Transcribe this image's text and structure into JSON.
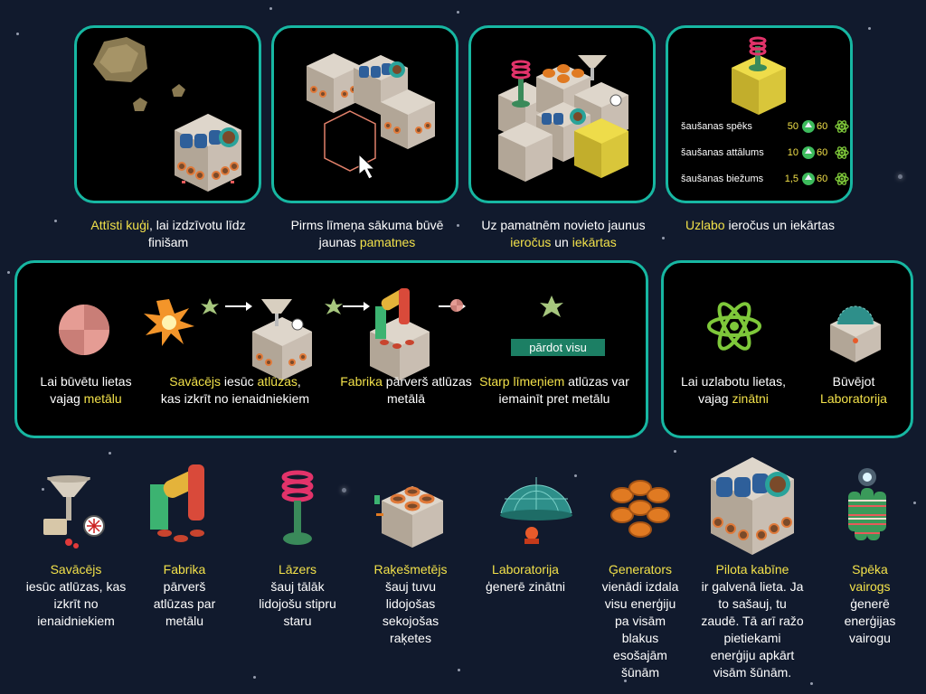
{
  "top_captions": [
    {
      "pre": "",
      "hl": "Attīsti kuģi",
      "post": ", lai izdzīvotu līdz finišam"
    },
    {
      "pre": "Pirms līmeņa sākuma būvē jaunas ",
      "hl": "pamatnes",
      "post": ""
    },
    {
      "pre": "Uz pamatnēm novieto jaunus ",
      "hl": "ieročus",
      "mid": " un ",
      "hl2": "iekārtas",
      "post": ""
    },
    {
      "pre": "",
      "hl": "Uzlabo",
      "post": " ieročus un iekārtas"
    }
  ],
  "stats": [
    {
      "label": "šaušanas spēks",
      "value": "50",
      "upgrade": "60"
    },
    {
      "label": "šaušanas attālums",
      "value": "10",
      "upgrade": "60"
    },
    {
      "label": "šaušanas biežums",
      "value": "1,5",
      "upgrade": "60"
    }
  ],
  "metal_panel": {
    "metal_caption": {
      "pre": "Lai būvētu lietas vajag ",
      "hl": "metālu",
      "post": ""
    },
    "collector_caption": {
      "hl": "Savācējs",
      "mid": " iesūc ",
      "hl2": "atlūzas",
      "post": ", kas izkrīt no ienaidniekiem"
    },
    "factory_caption": {
      "hl": "Fabrika",
      "post": " pārverš atlūzas metālā"
    },
    "sell_caption": {
      "hl": "Starp līmeņiem",
      "post": " atlūzas var iemainīt pret metālu"
    },
    "sell_button": "pārdot visu"
  },
  "science_panel": {
    "science_caption": {
      "pre": "Lai uzlabotu lietas, vajag ",
      "hl": "zinātni",
      "post": ""
    },
    "lab_caption": {
      "pre": "Būvējot ",
      "hl": "Laboratorija",
      "post": ""
    }
  },
  "items": [
    {
      "name": "Savācējs",
      "desc": "iesūc atlūzas, kas izkrīt no ienaidniekiem"
    },
    {
      "name": "Fabrika",
      "desc": "pārverš atlūzas par metālu"
    },
    {
      "name": "Lāzers",
      "desc": "šauj tālāk lidojošu stipru staru"
    },
    {
      "name": "Raķešmetējs",
      "desc": "šauj tuvu lidojošas sekojošas raķetes"
    },
    {
      "name": "Laboratorija",
      "desc": "ģenerē zinātni"
    },
    {
      "name": "Ģenerators",
      "desc": "vienādi izdala visu enerģiju pa visām blakus esošajām šūnām"
    },
    {
      "name": "Pilota kabīne",
      "desc": "ir galvenā lieta. Ja to sašauj, tu zaudē. Tā arī ražo pietiekami enerģiju apkārt visām šūnām."
    },
    {
      "name": "Spēka vairogs",
      "desc": "ģenerē enerģijas vairogu"
    }
  ],
  "colors": {
    "highlight": "#f2e14a",
    "panel_border": "#17b7a2",
    "background": "#111a2d",
    "sell_button": "#1c7f64"
  }
}
